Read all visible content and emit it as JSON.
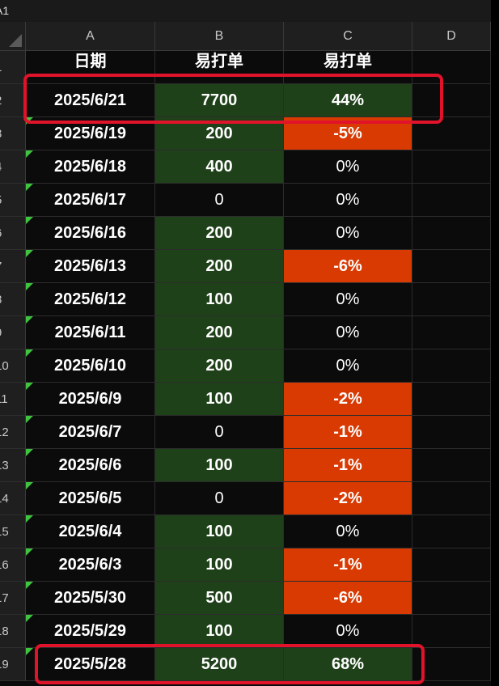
{
  "name_box": "A1",
  "columns": [
    "A",
    "B",
    "C",
    "D"
  ],
  "header_row": {
    "row_number": "1",
    "a": "日期",
    "b": "易打单",
    "c": "易打单"
  },
  "rows": [
    {
      "row_number": "2",
      "date": "2025/6/21",
      "count": "7700",
      "pct": "44%",
      "b_fill": "green",
      "c_fill": "green"
    },
    {
      "row_number": "3",
      "date": "2025/6/19",
      "count": "200",
      "pct": "-5%",
      "b_fill": "green",
      "c_fill": "red"
    },
    {
      "row_number": "4",
      "date": "2025/6/18",
      "count": "400",
      "pct": "0%",
      "b_fill": "green",
      "c_fill": "none"
    },
    {
      "row_number": "5",
      "date": "2025/6/17",
      "count": "0",
      "pct": "0%",
      "b_fill": "none",
      "c_fill": "none"
    },
    {
      "row_number": "6",
      "date": "2025/6/16",
      "count": "200",
      "pct": "0%",
      "b_fill": "green",
      "c_fill": "none"
    },
    {
      "row_number": "7",
      "date": "2025/6/13",
      "count": "200",
      "pct": "-6%",
      "b_fill": "green",
      "c_fill": "red"
    },
    {
      "row_number": "8",
      "date": "2025/6/12",
      "count": "100",
      "pct": "0%",
      "b_fill": "green",
      "c_fill": "none"
    },
    {
      "row_number": "9",
      "date": "2025/6/11",
      "count": "200",
      "pct": "0%",
      "b_fill": "green",
      "c_fill": "none"
    },
    {
      "row_number": "10",
      "date": "2025/6/10",
      "count": "200",
      "pct": "0%",
      "b_fill": "green",
      "c_fill": "none"
    },
    {
      "row_number": "11",
      "date": "2025/6/9",
      "count": "100",
      "pct": "-2%",
      "b_fill": "green",
      "c_fill": "red"
    },
    {
      "row_number": "12",
      "date": "2025/6/7",
      "count": "0",
      "pct": "-1%",
      "b_fill": "none",
      "c_fill": "red"
    },
    {
      "row_number": "13",
      "date": "2025/6/6",
      "count": "100",
      "pct": "-1%",
      "b_fill": "green",
      "c_fill": "red"
    },
    {
      "row_number": "14",
      "date": "2025/6/5",
      "count": "0",
      "pct": "-2%",
      "b_fill": "none",
      "c_fill": "red"
    },
    {
      "row_number": "15",
      "date": "2025/6/4",
      "count": "100",
      "pct": "0%",
      "b_fill": "green",
      "c_fill": "none"
    },
    {
      "row_number": "16",
      "date": "2025/6/3",
      "count": "100",
      "pct": "-1%",
      "b_fill": "green",
      "c_fill": "red"
    },
    {
      "row_number": "17",
      "date": "2025/5/30",
      "count": "500",
      "pct": "-6%",
      "b_fill": "green",
      "c_fill": "red"
    },
    {
      "row_number": "18",
      "date": "2025/5/29",
      "count": "100",
      "pct": "0%",
      "b_fill": "green",
      "c_fill": "none"
    },
    {
      "row_number": "19",
      "date": "2025/5/28",
      "count": "5200",
      "pct": "68%",
      "b_fill": "green",
      "c_fill": "green"
    }
  ],
  "highlighted_rows": [
    "2",
    "19"
  ],
  "colors": {
    "green_fill": "#1f4119",
    "red_fill": "#d83a02",
    "highlight_border": "#e0132a",
    "error_triangle": "#3ec43e",
    "sheet_bg": "#0b0b0b"
  }
}
